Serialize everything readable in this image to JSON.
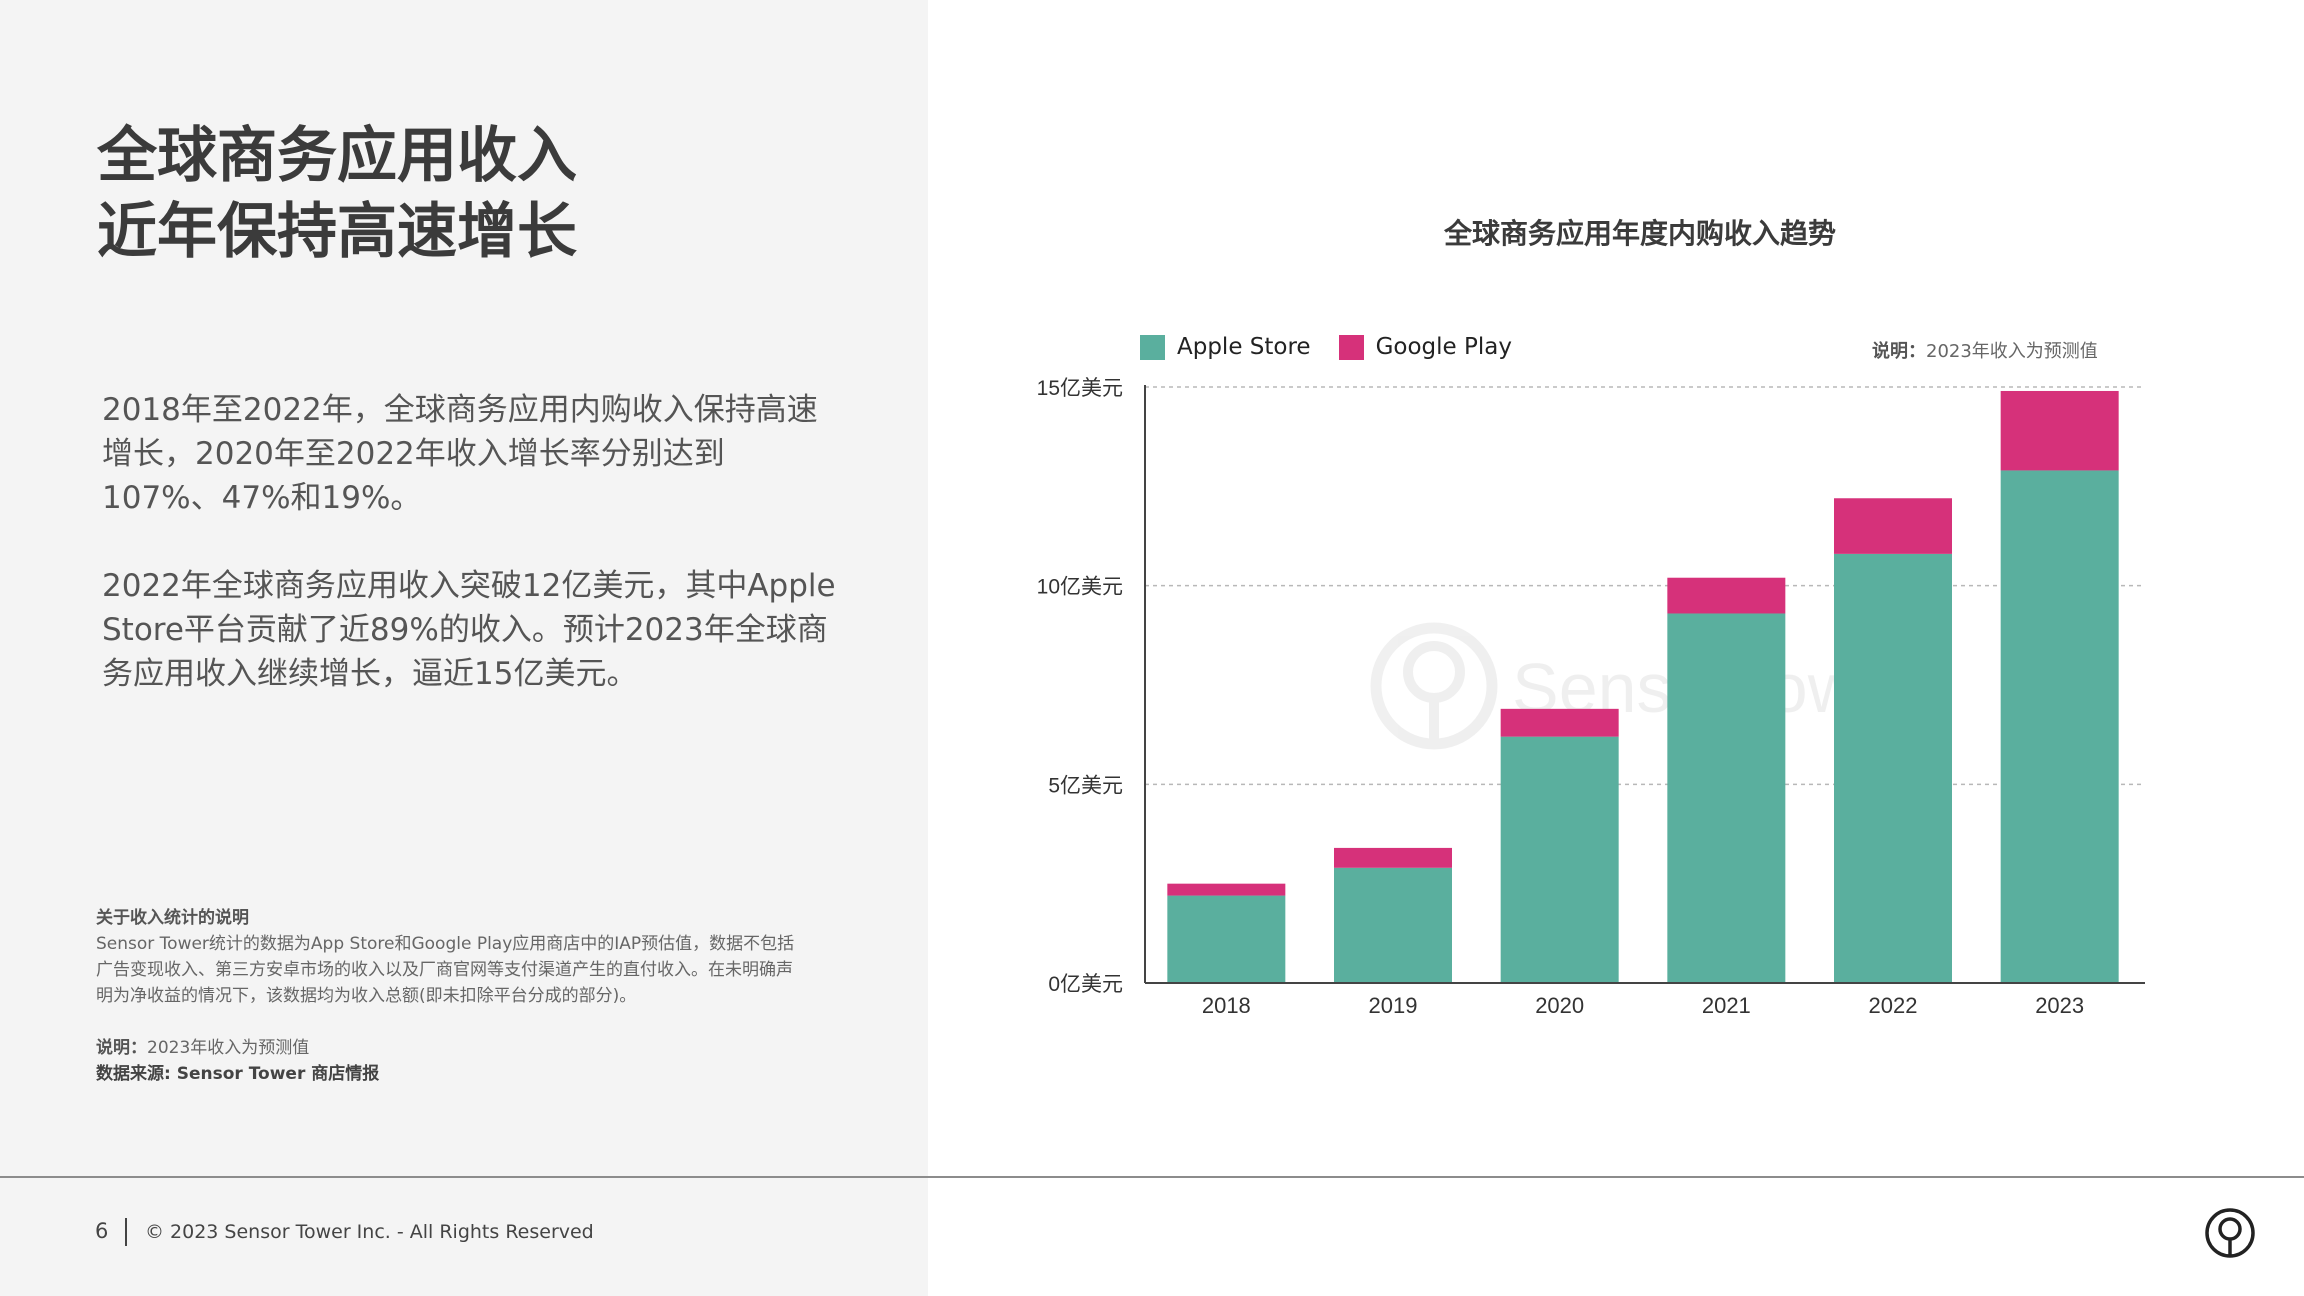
{
  "left": {
    "headline": [
      "全球商务应用收入",
      "近年保持高速增长"
    ],
    "paragraph1": "2018年至2022年，全球商务应用内购收入保持高速增长，2020年至2022年收入增长率分别达到107%、47%和19%。",
    "paragraph2": "2022年全球商务应用收入突破12亿美元，其中Apple Store平台贡献了近89%的收入。预计2023年全球商务应用收入继续增长，逼近15亿美元。",
    "notes": {
      "title": "关于收入统计的说明",
      "body": "Sensor Tower统计的数据为App Store和Google Play应用商店中的IAP预估值，数据不包括广告变现收入、第三方安卓市场的收入以及厂商官网等支付渠道产生的直付收入。在未明确声明为净收益的情况下，该数据均为收入总额(即未扣除平台分成的部分)。",
      "explain_label": "说明：",
      "explain_text": "2023年收入为预测值",
      "source": "数据来源: Sensor Tower 商店情报"
    }
  },
  "footer": {
    "page_number": "6",
    "copyright": "© 2023 Sensor Tower Inc. - All Rights Reserved",
    "logo_icon": "sensor-tower-logo-icon"
  },
  "chart_data": {
    "type": "bar",
    "stacked": true,
    "title": "全球商务应用年度内购收入趋势",
    "note_label": "说明：",
    "note_text": "2023年收入为预测值",
    "watermark": "SensorTower",
    "categories": [
      "2018",
      "2019",
      "2020",
      "2021",
      "2022",
      "2023"
    ],
    "series": [
      {
        "name": "Apple Store",
        "color": "#5aaf9e",
        "values": [
          2.2,
          2.9,
          6.2,
          9.3,
          10.8,
          12.9
        ]
      },
      {
        "name": "Google Play",
        "color": "#d6317a",
        "values": [
          0.3,
          0.5,
          0.7,
          0.9,
          1.4,
          2.0
        ]
      }
    ],
    "ylim": [
      0,
      15
    ],
    "yticks": [
      0,
      5,
      10,
      15
    ],
    "ytick_labels": [
      "0亿美元",
      "5亿美元",
      "10亿美元",
      "15亿美元"
    ],
    "grid": true,
    "legend_position": "top-left"
  }
}
